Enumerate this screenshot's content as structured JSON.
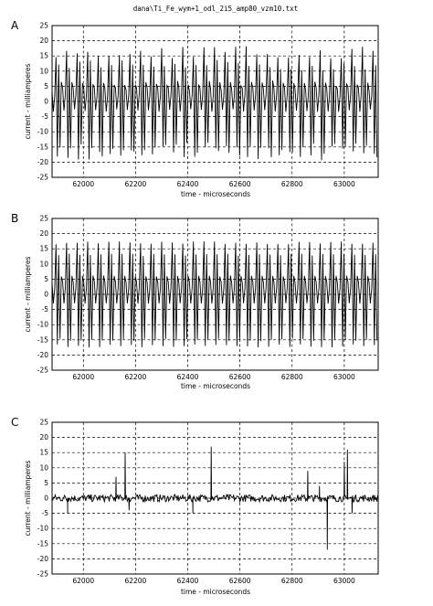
{
  "figure_title": "dana\\Ti_Fe_wym+1_odl_2i5_amp80_vzm10.txt",
  "chart_data": [
    {
      "panel": "A",
      "type": "line",
      "title": "dana\\Ti_Fe_wym+1_odl_2i5_amp80_vzm10.txt",
      "xlabel": "time - microseconds",
      "ylabel": "current - milliamperes",
      "xlim": [
        61880,
        63130
      ],
      "ylim": [
        -25,
        25
      ],
      "xticks": [
        62000,
        62200,
        62400,
        62600,
        62800,
        63000
      ],
      "yticks": [
        25,
        20,
        15,
        10,
        5,
        0,
        -5,
        -10,
        -15,
        -20,
        -25
      ],
      "grid": true,
      "waveform": {
        "style": "periodic",
        "period_us": 40.5,
        "start_us": 61895,
        "peaks": [
          16,
          -17,
          12,
          -16,
          6,
          4,
          -3,
          2
        ],
        "amplitude_max": 19,
        "amplitude_min": -20,
        "irregular": true
      }
    },
    {
      "panel": "B",
      "type": "line",
      "title": "",
      "xlabel": "time - microseconds",
      "ylabel": "current - milliamperes",
      "xlim": [
        61880,
        63130
      ],
      "ylim": [
        -25,
        25
      ],
      "xticks": [
        62000,
        62200,
        62400,
        62600,
        62800,
        63000
      ],
      "yticks": [
        25,
        20,
        15,
        10,
        5,
        0,
        -5,
        -10,
        -15,
        -20,
        -25
      ],
      "grid": true,
      "waveform": {
        "style": "periodic",
        "period_us": 40.5,
        "start_us": 61895,
        "peaks": [
          17,
          -17,
          13,
          -15,
          6,
          4,
          -3,
          2
        ],
        "amplitude_max": 18,
        "amplitude_min": -18,
        "irregular": false
      }
    },
    {
      "panel": "C",
      "type": "line",
      "title": "",
      "xlabel": "time - microseconds",
      "ylabel": "current - milliamperes",
      "xlim": [
        61880,
        63130
      ],
      "ylim": [
        -25,
        25
      ],
      "xticks": [
        62000,
        62200,
        62400,
        62600,
        62800,
        63000
      ],
      "yticks": [
        25,
        20,
        15,
        10,
        5,
        0,
        -5,
        -10,
        -15,
        -20,
        -25
      ],
      "grid": true,
      "waveform": {
        "style": "residual",
        "baseline": 0,
        "noise": 1.2,
        "spikes": [
          {
            "x": 61940,
            "y": -5
          },
          {
            "x": 62125,
            "y": 7
          },
          {
            "x": 62160,
            "y": 15
          },
          {
            "x": 62175,
            "y": -4
          },
          {
            "x": 62420,
            "y": -5
          },
          {
            "x": 62490,
            "y": 17
          },
          {
            "x": 62860,
            "y": 9
          },
          {
            "x": 62905,
            "y": 4
          },
          {
            "x": 62935,
            "y": -17
          },
          {
            "x": 63000,
            "y": 12
          },
          {
            "x": 63012,
            "y": 16
          },
          {
            "x": 63030,
            "y": -5
          }
        ]
      }
    }
  ]
}
